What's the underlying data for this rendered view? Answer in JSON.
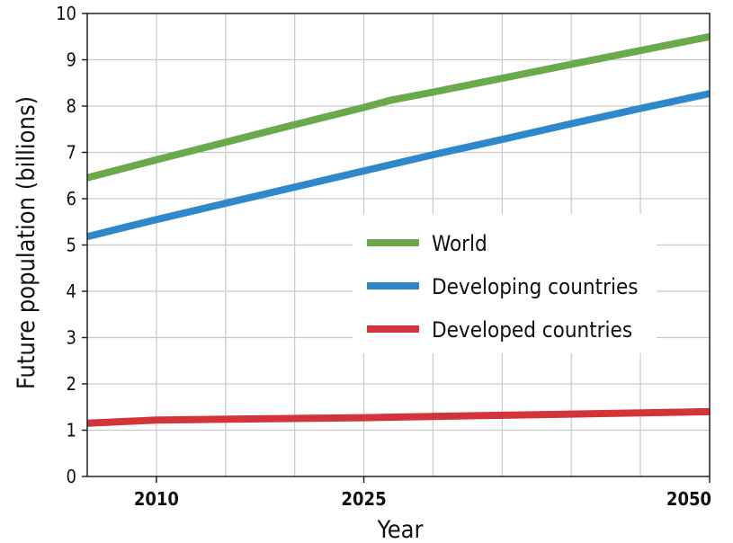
{
  "chart_data": {
    "type": "line",
    "xlabel": "Year",
    "ylabel": "Future population (billions)",
    "xlim": [
      2005,
      2050
    ],
    "ylim": [
      0,
      10
    ],
    "x_ticks": [
      2010,
      2025,
      2050
    ],
    "y_ticks": [
      0,
      1,
      2,
      3,
      4,
      5,
      6,
      7,
      8,
      9,
      10
    ],
    "grid": true,
    "legend_position": "center-right",
    "series": [
      {
        "name": "World",
        "color": "#6aaa4a",
        "x": [
          2005,
          2010,
          2015,
          2020,
          2025,
          2027,
          2030,
          2035,
          2040,
          2045,
          2050
        ],
        "y": [
          6.45,
          6.84,
          7.22,
          7.6,
          7.97,
          8.13,
          8.3,
          8.6,
          8.9,
          9.2,
          9.5
        ]
      },
      {
        "name": "Developing countries",
        "color": "#2f88c9",
        "x": [
          2005,
          2010,
          2015,
          2020,
          2025,
          2030,
          2035,
          2040,
          2045,
          2050
        ],
        "y": [
          5.18,
          5.55,
          5.9,
          6.25,
          6.6,
          6.95,
          7.28,
          7.62,
          7.95,
          8.27
        ]
      },
      {
        "name": "Developed countries",
        "color": "#d2343a",
        "x": [
          2005,
          2010,
          2025,
          2050
        ],
        "y": [
          1.15,
          1.22,
          1.27,
          1.4
        ]
      }
    ]
  }
}
